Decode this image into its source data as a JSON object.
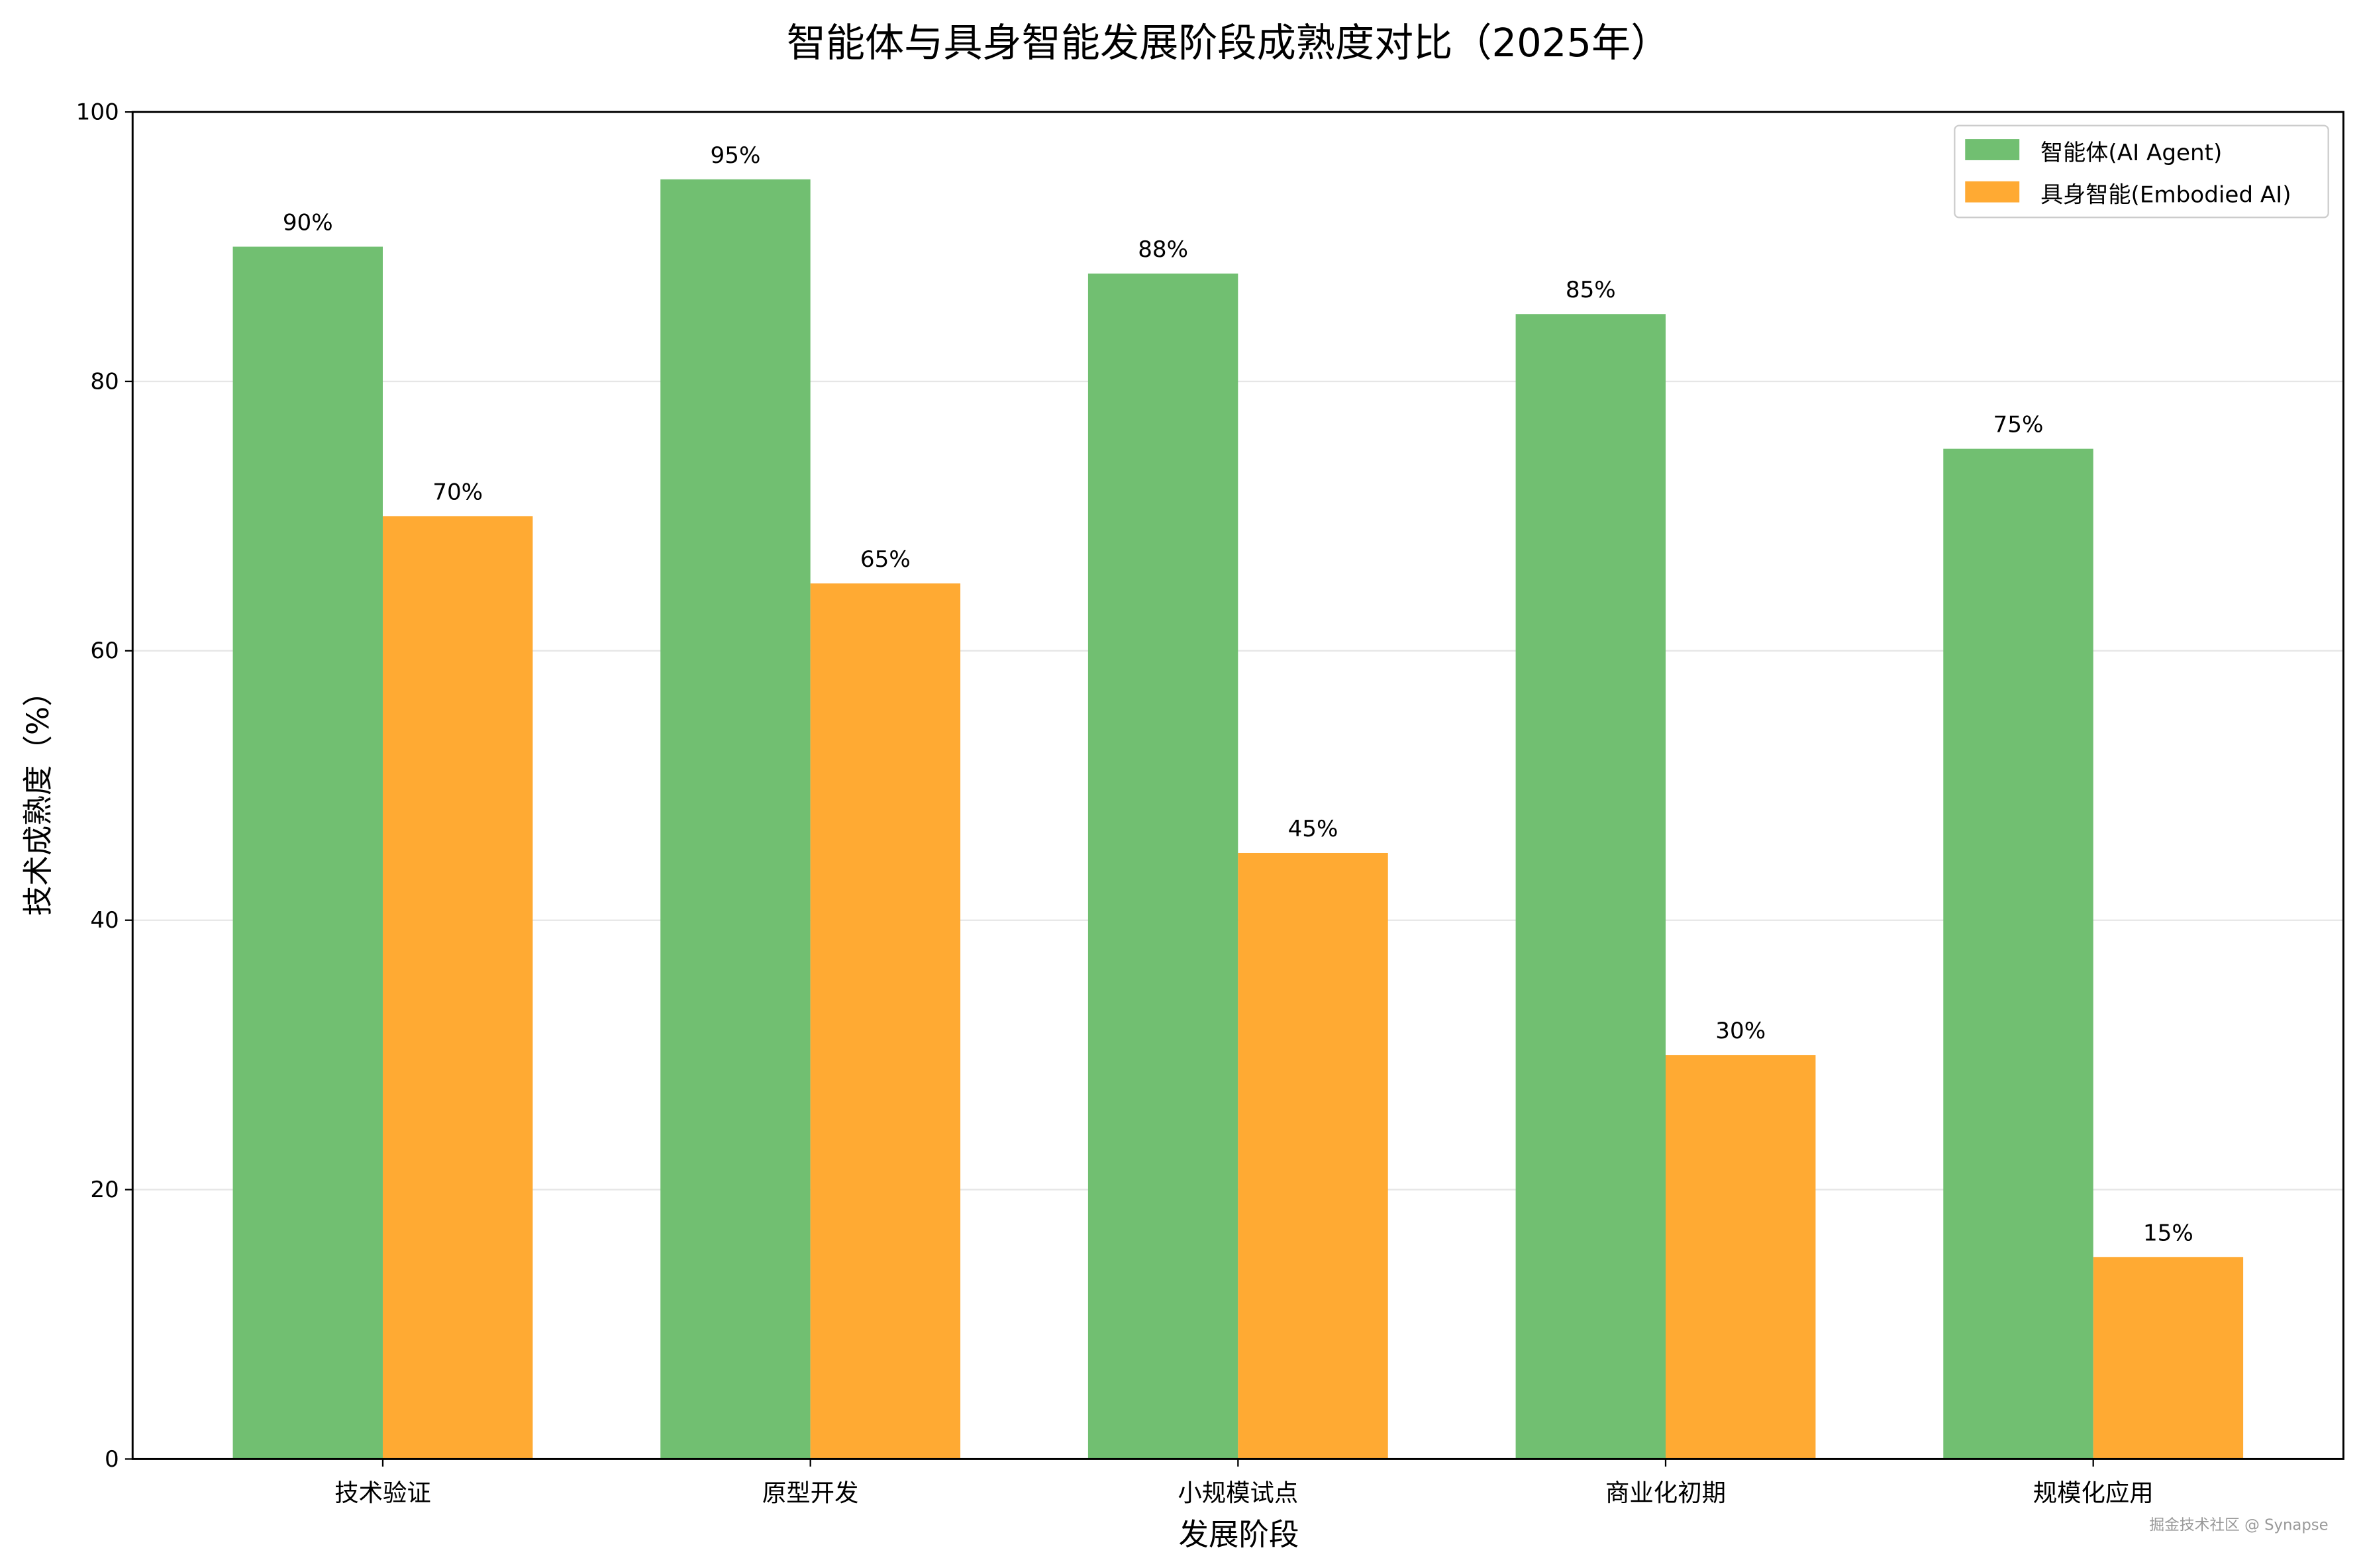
{
  "chart_data": {
    "type": "bar",
    "title": "智能体与具身智能发展阶段成熟度对比（2025年）",
    "xlabel": "发展阶段",
    "ylabel": "技术成熟度（%）",
    "ylim": [
      0,
      100
    ],
    "yticks": [
      0,
      20,
      40,
      60,
      80,
      100
    ],
    "grid": "y",
    "legend_position": "top-right",
    "categories": [
      "技术验证",
      "原型开发",
      "小规模试点",
      "商业化初期",
      "规模化应用"
    ],
    "series": [
      {
        "name": "智能体(AI Agent)",
        "color": "#71bf71",
        "values": [
          90,
          95,
          88,
          85,
          75
        ],
        "labels": [
          "90%",
          "95%",
          "88%",
          "85%",
          "75%"
        ]
      },
      {
        "name": "具身智能(Embodied AI)",
        "color": "#ffaa33",
        "values": [
          70,
          65,
          45,
          30,
          15
        ],
        "labels": [
          "70%",
          "65%",
          "45%",
          "30%",
          "15%"
        ]
      }
    ]
  },
  "watermark": "掘金技术社区 @ Synapse"
}
